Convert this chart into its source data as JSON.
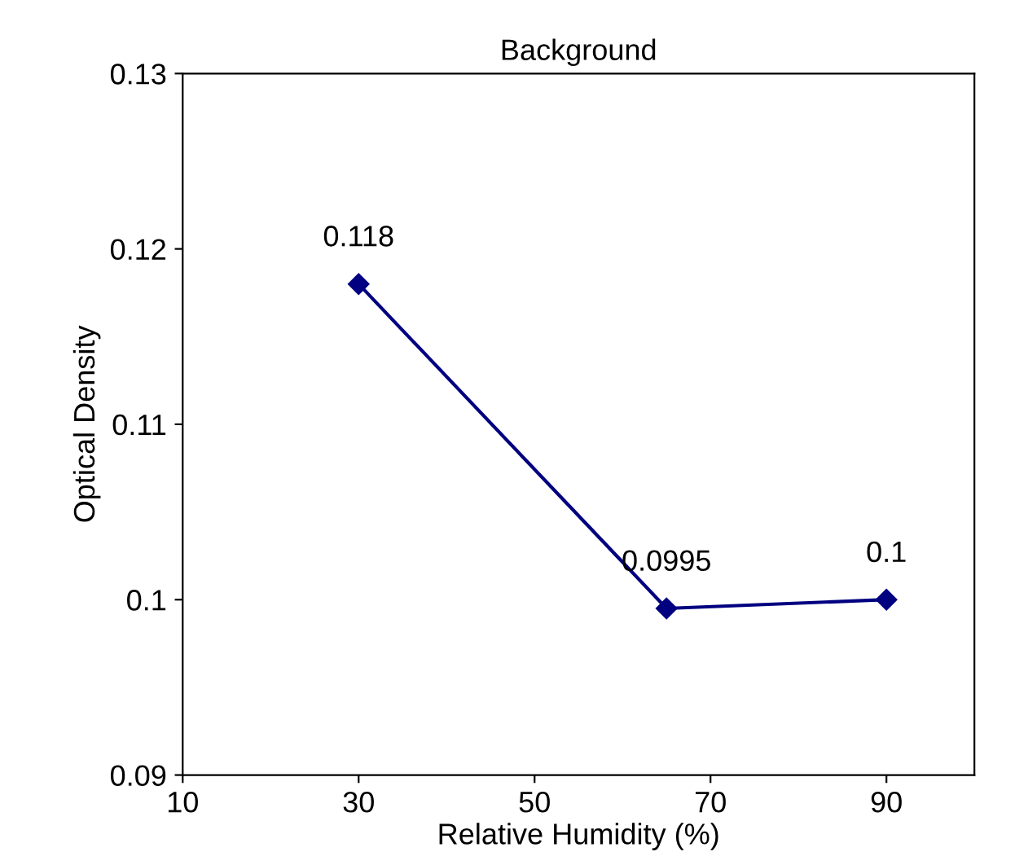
{
  "chart_data": {
    "type": "line",
    "title": "Background",
    "xlabel": "Relative Humidity (%)",
    "ylabel": "Optical Density",
    "x": [
      30,
      65,
      90
    ],
    "series": [
      {
        "color": "#000080",
        "values": [
          0.118,
          0.0995,
          0.1
        ]
      }
    ],
    "xlim": [
      10,
      100
    ],
    "xticks": [
      10,
      30,
      50,
      70,
      90
    ],
    "ylim": [
      0.09,
      0.13
    ],
    "yticks": [
      0.09,
      0.1,
      0.11,
      0.12,
      0.13
    ],
    "marker": "diamond",
    "line_style": "solid",
    "data_labels": true,
    "grid": false,
    "legend": false
  }
}
